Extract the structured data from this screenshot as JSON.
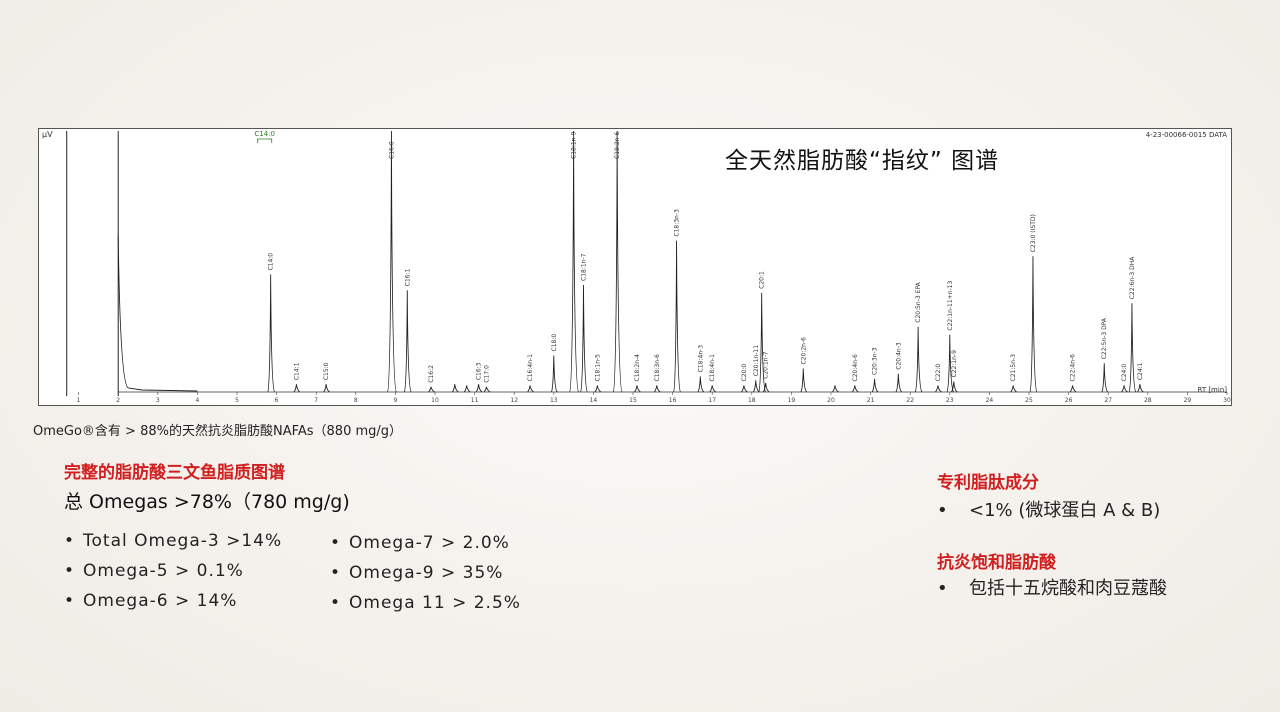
{
  "chart_title": "全天然脂肪酸“指纹” 图谱",
  "y_unit": "μV",
  "data_id": "4-23-00066-0015 DATA",
  "x_axis_label": "RT [min]",
  "caption": "OmeGo®含有 > 88%的天然抗炎脂肪酸NAFAs（880 mg/g）",
  "profile": {
    "heading": "完整的脂肪酸三文鱼脂质图谱",
    "total": "总 Omegas >78%（780 mg/g)",
    "col1": [
      "Total Omega-3 >14%",
      "Omega-5 > 0.1%",
      "Omega-6 > 14%"
    ],
    "col2": [
      "Omega-7 > 2.0%",
      "Omega-9 > 35%",
      "Omega 11 > 2.5%"
    ]
  },
  "peptides": {
    "heading": "专利脂肽成分",
    "items": [
      "<1% (微球蛋白 A & B)"
    ]
  },
  "anti_inflammatory": {
    "heading": "抗炎饱和脂肪酸",
    "items": [
      "包括十五烷酸和肉豆蔻酸"
    ]
  },
  "bullet": "•",
  "chart_data": {
    "type": "line",
    "title": "全天然脂肪酸“指纹” 图谱",
    "xlabel": "RT [min]",
    "ylabel": "μV",
    "xlim": [
      0,
      30
    ],
    "ylim": [
      0,
      100
    ],
    "x_ticks": [
      1,
      2,
      3,
      4,
      5,
      6,
      7,
      8,
      9,
      10,
      11,
      12,
      13,
      14,
      15,
      16,
      17,
      18,
      19,
      20,
      21,
      22,
      23,
      24,
      25,
      26,
      27,
      28,
      29,
      30
    ],
    "solvent_front": [
      {
        "x": 0.7,
        "y": 100
      },
      {
        "x": 2.0,
        "y": 100
      }
    ],
    "marker_label": "C14:0",
    "marker_x": 5.7,
    "peaks": [
      {
        "x": 5.85,
        "y": 45,
        "label": "C14:0"
      },
      {
        "x": 6.5,
        "y": 3,
        "label": "C14:1"
      },
      {
        "x": 7.25,
        "y": 3,
        "label": "C15:0"
      },
      {
        "x": 8.9,
        "y": 100,
        "label": "C16:0"
      },
      {
        "x": 9.3,
        "y": 39,
        "label": "C16:1"
      },
      {
        "x": 9.9,
        "y": 2,
        "label": "C16:2"
      },
      {
        "x": 10.5,
        "y": 3,
        "label": ""
      },
      {
        "x": 10.8,
        "y": 2.5,
        "label": ""
      },
      {
        "x": 11.1,
        "y": 3,
        "label": "C16:3"
      },
      {
        "x": 11.3,
        "y": 2,
        "label": "C17:0"
      },
      {
        "x": 12.4,
        "y": 2.5,
        "label": "C16:4n-1"
      },
      {
        "x": 13.0,
        "y": 14,
        "label": "C18:0"
      },
      {
        "x": 13.5,
        "y": 100,
        "label": "C18:1n-9"
      },
      {
        "x": 13.75,
        "y": 41,
        "label": "C18:1n-7"
      },
      {
        "x": 14.1,
        "y": 2.5,
        "label": "C18:1n-5"
      },
      {
        "x": 14.6,
        "y": 100,
        "label": "C18:2n-6"
      },
      {
        "x": 15.1,
        "y": 2.5,
        "label": "C18:2n-4"
      },
      {
        "x": 15.6,
        "y": 2.5,
        "label": "C18:3n-6"
      },
      {
        "x": 16.1,
        "y": 58,
        "label": "C18:3n-3"
      },
      {
        "x": 16.7,
        "y": 6,
        "label": "C18:4n-3"
      },
      {
        "x": 17.0,
        "y": 2.5,
        "label": "C18:4n-1"
      },
      {
        "x": 17.8,
        "y": 2.5,
        "label": "C20:0"
      },
      {
        "x": 18.1,
        "y": 4.5,
        "label": "C20:1n-11"
      },
      {
        "x": 18.25,
        "y": 38,
        "label": "C20:1"
      },
      {
        "x": 18.35,
        "y": 3.5,
        "label": "C20:1n-7"
      },
      {
        "x": 19.3,
        "y": 9,
        "label": "C20:2n-6"
      },
      {
        "x": 20.1,
        "y": 2.5,
        "label": ""
      },
      {
        "x": 20.6,
        "y": 2.5,
        "label": "C20:4n-6"
      },
      {
        "x": 21.1,
        "y": 5,
        "label": "C20:3n-3"
      },
      {
        "x": 21.7,
        "y": 7,
        "label": "C20:4n-3"
      },
      {
        "x": 22.2,
        "y": 25,
        "label": "C20:5n-3 EPA"
      },
      {
        "x": 22.7,
        "y": 2.5,
        "label": "C22:0"
      },
      {
        "x": 23.0,
        "y": 22,
        "label": "C22:1n-11+n-13"
      },
      {
        "x": 23.1,
        "y": 4,
        "label": "C22:1n-9"
      },
      {
        "x": 24.6,
        "y": 2.5,
        "label": "C21:5n-3"
      },
      {
        "x": 25.1,
        "y": 52,
        "label": "C23:0 (ISTD)"
      },
      {
        "x": 26.1,
        "y": 2.5,
        "label": "C22:4n-6"
      },
      {
        "x": 26.9,
        "y": 11,
        "label": "C22:5n-3 DPA"
      },
      {
        "x": 27.4,
        "y": 2.5,
        "label": "C24:0"
      },
      {
        "x": 27.6,
        "y": 34,
        "label": "C22:6n-3 DHA"
      },
      {
        "x": 27.8,
        "y": 3,
        "label": "C24:1"
      }
    ]
  }
}
